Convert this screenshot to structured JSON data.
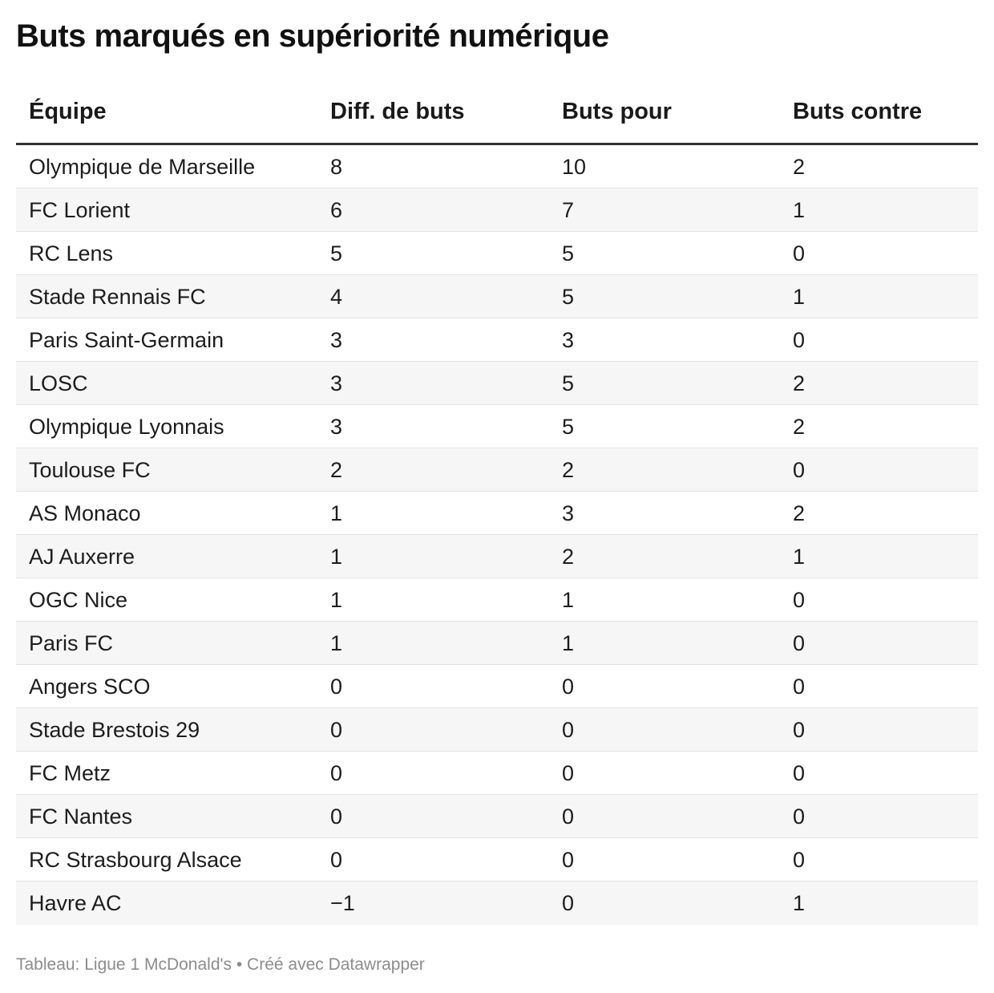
{
  "title": "Buts marqués en supériorité numérique",
  "table": {
    "headers": [
      "Équipe",
      "Diff. de buts",
      "Buts pour",
      "Buts contre"
    ],
    "rows": [
      [
        "Olympique de Marseille",
        "8",
        "10",
        "2"
      ],
      [
        "FC Lorient",
        "6",
        "7",
        "1"
      ],
      [
        "RC Lens",
        "5",
        "5",
        "0"
      ],
      [
        "Stade Rennais FC",
        "4",
        "5",
        "1"
      ],
      [
        "Paris Saint-Germain",
        "3",
        "3",
        "0"
      ],
      [
        "LOSC",
        "3",
        "5",
        "2"
      ],
      [
        "Olympique Lyonnais",
        "3",
        "5",
        "2"
      ],
      [
        "Toulouse FC",
        "2",
        "2",
        "0"
      ],
      [
        "AS Monaco",
        "1",
        "3",
        "2"
      ],
      [
        "AJ Auxerre",
        "1",
        "2",
        "1"
      ],
      [
        "OGC Nice",
        "1",
        "1",
        "0"
      ],
      [
        "Paris FC",
        "1",
        "1",
        "0"
      ],
      [
        "Angers SCO",
        "0",
        "0",
        "0"
      ],
      [
        "Stade Brestois 29",
        "0",
        "0",
        "0"
      ],
      [
        "FC Metz",
        "0",
        "0",
        "0"
      ],
      [
        "FC Nantes",
        "0",
        "0",
        "0"
      ],
      [
        "RC Strasbourg Alsace",
        "0",
        "0",
        "0"
      ],
      [
        "Havre AC",
        "−1",
        "0",
        "1"
      ]
    ]
  },
  "footer": {
    "source": "Tableau: Ligue 1 McDonald's • Créé avec Datawrapper"
  },
  "colors": {
    "header_rule": "#333333",
    "row_alt_bg": "#f6f6f6",
    "row_divider": "#e2e2e2",
    "footer_text": "#8c8c8c"
  }
}
